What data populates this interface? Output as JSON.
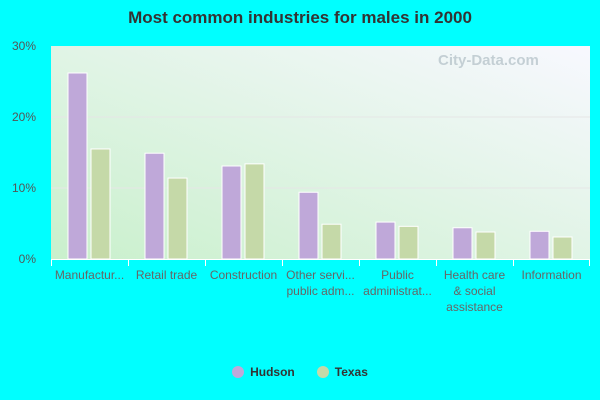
{
  "chart_data": {
    "type": "bar",
    "title": "Most common industries for males in 2000",
    "categories": [
      [
        "Manufactur..."
      ],
      [
        "Retail trade"
      ],
      [
        "Construction"
      ],
      [
        "Other servi...",
        "public adm..."
      ],
      [
        "Public",
        "administrat..."
      ],
      [
        "Health care",
        "& social",
        "assistance"
      ],
      [
        "Information"
      ]
    ],
    "series": [
      {
        "name": "Hudson",
        "color": "#bfa8d9",
        "values": [
          26.2,
          14.9,
          13.1,
          9.4,
          5.2,
          4.4,
          3.9
        ]
      },
      {
        "name": "Texas",
        "color": "#c5d9a8",
        "values": [
          15.5,
          11.4,
          13.4,
          4.9,
          4.6,
          3.8,
          3.1
        ]
      }
    ],
    "ylim": [
      0,
      30
    ],
    "yticks": [
      "0%",
      "10%",
      "20%",
      "30%"
    ],
    "grid": true,
    "legend": "bottom"
  },
  "watermark": "City-Data.com"
}
